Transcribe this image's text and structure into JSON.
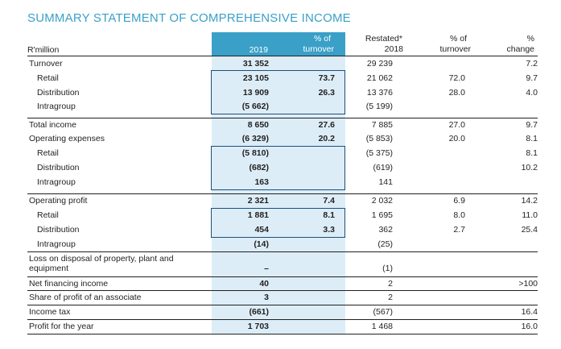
{
  "title": "SUMMARY STATEMENT OF COMPREHENSIVE INCOME",
  "columns": {
    "label": "R'million",
    "c1": "2019",
    "c2a": "% of",
    "c2b": "turnover",
    "c3a": "Restated*",
    "c3b": "2018",
    "c4a": "% of",
    "c4b": "turnover",
    "c5a": "%",
    "c5b": "change"
  },
  "rows": [
    {
      "label": "Turnover",
      "c1": "31 352",
      "c2": "",
      "c3": "29 239",
      "c4": "",
      "c5": "7.2"
    },
    {
      "label": "Retail",
      "c1": "23 105",
      "c2": "73.7",
      "c3": "21 062",
      "c4": "72.0",
      "c5": "9.7"
    },
    {
      "label": "Distribution",
      "c1": "13 909",
      "c2": "26.3",
      "c3": "13 376",
      "c4": "28.0",
      "c5": "4.0"
    },
    {
      "label": "Intragroup",
      "c1": "(5 662)",
      "c2": "",
      "c3": "(5 199)",
      "c4": "",
      "c5": ""
    },
    {
      "label": "Total income",
      "c1": "8 650",
      "c2": "27.6",
      "c3": "7 885",
      "c4": "27.0",
      "c5": "9.7"
    },
    {
      "label": "Operating expenses",
      "c1": "(6 329)",
      "c2": "20.2",
      "c3": "(5 853)",
      "c4": "20.0",
      "c5": "8.1"
    },
    {
      "label": "Retail",
      "c1": "(5 810)",
      "c2": "",
      "c3": "(5 375)",
      "c4": "",
      "c5": "8.1"
    },
    {
      "label": "Distribution",
      "c1": "(682)",
      "c2": "",
      "c3": "(619)",
      "c4": "",
      "c5": "10.2"
    },
    {
      "label": "Intragroup",
      "c1": "163",
      "c2": "",
      "c3": "141",
      "c4": "",
      "c5": ""
    },
    {
      "label": "Operating profit",
      "c1": "2 321",
      "c2": "7.4",
      "c3": "2 032",
      "c4": "6.9",
      "c5": "14.2"
    },
    {
      "label": "Retail",
      "c1": "1 881",
      "c2": "8.1",
      "c3": "1 695",
      "c4": "8.0",
      "c5": "11.0"
    },
    {
      "label": "Distribution",
      "c1": "454",
      "c2": "3.3",
      "c3": "362",
      "c4": "2.7",
      "c5": "25.4"
    },
    {
      "label": "Intragroup",
      "c1": "(14)",
      "c2": "",
      "c3": "(25)",
      "c4": "",
      "c5": ""
    },
    {
      "label": "Loss on disposal of property, plant and",
      "label2": "equipment",
      "c1": "–",
      "c2": "",
      "c3": "(1)",
      "c4": "",
      "c5": ""
    },
    {
      "label": "Net financing income",
      "c1": "40",
      "c2": "",
      "c3": "2",
      "c4": "",
      "c5": ">100"
    },
    {
      "label": "Share of profit of an associate",
      "c1": "3",
      "c2": "",
      "c3": "2",
      "c4": "",
      "c5": ""
    },
    {
      "label": "Income tax",
      "c1": "(661)",
      "c2": "",
      "c3": "(567)",
      "c4": "",
      "c5": "16.4"
    },
    {
      "label": "Profit for the year",
      "c1": "1 703",
      "c2": "",
      "c3": "1 468",
      "c4": "",
      "c5": "16.0"
    }
  ]
}
